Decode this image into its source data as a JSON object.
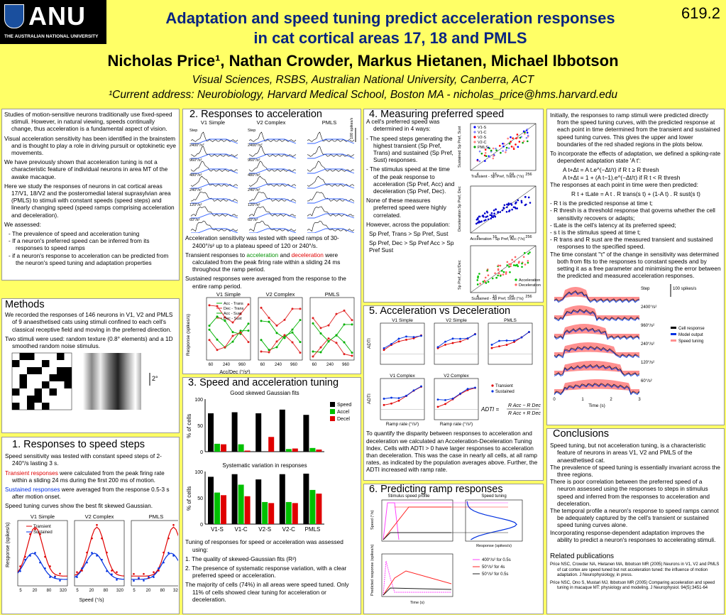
{
  "header": {
    "logo_word": "ANU",
    "logo_sub": "THE AUSTRALIAN NATIONAL UNIVERSITY",
    "title_line1": "Adaptation and speed tuning predict acceleration responses",
    "title_line2": "in cat cortical areas 17, 18 and PMLS",
    "poster_number": "619.2",
    "authors": "Nicholas Price¹, Nathan Crowder, Markus Hietanen, Michael Ibbotson",
    "affiliation": "Visual Sciences, RSBS, Australian National University, Canberra, ACT",
    "current_address": "¹Current address: Neurobiology, Harvard Medical School, Boston MA    -     nicholas_price@hms.harvard.edu"
  },
  "intro": {
    "p1": "Studies of motion-sensitive neurons traditionally use fixed-speed stimuli. However, in natural viewing, speeds continually change, thus acceleration is a fundamental aspect of vision.",
    "p2": "Visual acceleration sensitivity has been identified in the brainstem and is thought to play a role in driving pursuit or optokinetic eye movements.",
    "p3": "We have previously shown that acceleration tuning is not a characteristic feature of individual neurons in area MT of the awake macaque.",
    "p4": "Here we study the responses of neurons in cat cortical areas 17/V1, 18/V2 and the posteromedial lateral suprasylvian area (PMLS) to stimuli with constant speeds (speed steps) and linearly changing speed (speed ramps comprising acceleration and deceleration).",
    "p5": "We assessed:",
    "b1": "- The prevalence of speed and acceleration tuning",
    "b2": "- If a neuron's preferred speed can be inferred from its responses to speed ramps",
    "b3": "- if a neuron's response to acceleration can be predicted from the neuron's speed tuning and adaptation properties"
  },
  "methods": {
    "heading": "Methods",
    "p1": "We recorded the responses of 146 neurons in V1, V2 and PMLS of 9 anaesthetised cats using stimuli confined to each cell's classical receptive field and moving in the preferred direction.",
    "p2": "Two stimuli were used: random texture (0.8° elements) and a 1D smoothed random noise stimulus.",
    "scale": "2°"
  },
  "s1": {
    "heading": "1. Responses to speed steps",
    "t1": "Speed sensitivity was tested with constant speed steps of 2-240°/s lasting 3 s.",
    "t2a": "Transient responses",
    "t2b": " were calculated from the peak firing rate within a sliding 24 ms during the first 200 ms of motion.",
    "t3a": "Sustained responses",
    "t3b": " were averaged from the response 0.5-3 s after motion onset.",
    "t4": "Speed tuning curves show the best fit skewed Gaussian.",
    "panels": [
      "V1 Simple",
      "V2 Complex",
      "PMLS"
    ],
    "legend": [
      "Transient",
      "Sustained"
    ],
    "xlabel": "Speed (°/s)",
    "ylabel": "Response (spikes/s)",
    "xticks": [
      "5",
      "20",
      "80",
      "320"
    ]
  },
  "s2": {
    "heading": "2. Responses to acceleration",
    "panels": [
      "V1 Simple",
      "V2 Complex",
      "PMLS"
    ],
    "step": "Step",
    "rates": [
      "2400°/s²",
      "960°/s²",
      "480°/s²",
      "240°/s²",
      "120°/s²",
      "60°/s²"
    ],
    "scale": "100 spikes/s",
    "t1": "Acceleration sensitivity was tested with speed ramps of 30-2400°/s² up to a plateau speed of 120 or 240°/s.",
    "t2a": "Transient responses to ",
    "t2b": "acceleration",
    "t2c": " and ",
    "t2d": "deceleration",
    "t2e": " were calculated from the peak firing rate within a sliding 24 ms throughout the ramp period.",
    "t3": "Sustained responses were averaged from the response to the entire ramp period.",
    "legend": [
      "Acc - Trans",
      "Dec - Trans",
      "Acc - Sust",
      "Dec - Sust"
    ],
    "xlabel": "Acc/Dec (°/s²)",
    "ylabel": "Response (spikes/s)",
    "xticks": [
      "60",
      "240",
      "960"
    ]
  },
  "s3": {
    "heading": "3. Speed and acceleration tuning",
    "chart1_title": "Good skewed Gaussian fits",
    "chart2_title": "Systematic variation in responses",
    "ylabel": "% of cells",
    "legend": [
      "Speed",
      "Accel",
      "Decel"
    ],
    "t1": "Tuning of responses for speed or acceleration was assessed using:",
    "t2": "1. The quality of skewed-Gaussian fits (R²)",
    "t3": "2. The presence of systematic response variation, with a clear preferred speed or acceleration.",
    "t4": "The majority of cells (74%) in all areas were speed tuned. Only 11% of cells showed clear tuning for acceleration or deceleration."
  },
  "chart_data": [
    {
      "type": "bar",
      "title": "Good skewed Gaussian fits",
      "categories": [
        "V1-S",
        "V1-C",
        "V2-S",
        "V2-C",
        "PMLS"
      ],
      "series": [
        {
          "name": "Speed",
          "values": [
            73,
            75,
            73,
            80,
            70
          ]
        },
        {
          "name": "Accel",
          "values": [
            15,
            14,
            0,
            5,
            7
          ]
        },
        {
          "name": "Decel",
          "values": [
            14,
            2,
            28,
            6,
            4
          ]
        }
      ],
      "ylabel": "% of cells",
      "ylim": [
        0,
        100
      ]
    },
    {
      "type": "bar",
      "title": "Systematic variation in responses",
      "categories": [
        "V1-S",
        "V1-C",
        "V2-S",
        "V2-C",
        "PMLS"
      ],
      "series": [
        {
          "name": "Speed",
          "values": [
            90,
            95,
            85,
            95,
            96
          ]
        },
        {
          "name": "Accel",
          "values": [
            60,
            75,
            42,
            42,
            65
          ]
        },
        {
          "name": "Decel",
          "values": [
            55,
            53,
            40,
            40,
            58
          ]
        }
      ],
      "ylabel": "% of cells",
      "ylim": [
        0,
        100
      ]
    }
  ],
  "s4": {
    "heading": "4. Measuring preferred speed",
    "t1": "A cell's preferred speed was determined in 4 ways:",
    "t2": "- The speed steps generating the highest transient (Sp Pref, Trans) and sustained (Sp Pref, Sust) responses.",
    "t3": "- The stimulus speed at the time of the peak response to acceleration (Sp Pref, Acc) and deceleration (Sp Pref, Dec).",
    "t4": "None of these measures preferred speed were highly correlated.",
    "t5": "However, across the population:",
    "t6": "Sp Pref, Trans > Sp Pref, Sust",
    "t7": "Sp Pref, Dec > Sp Pref Acc > Sp Pref Sust",
    "legend": [
      "V1-S",
      "V1-C",
      "V2-S",
      "V2-C",
      "PMLS"
    ],
    "x1": "Transient - Sp Pref, Trans (°/s)",
    "y1": "Sustained Sp Pref, Sust",
    "x2": "Acceleration - Sp Pref, Acc (°/s)",
    "y2": "Deceleration Sp Pref, Dec",
    "x3": "Sustained - Sp Pref, Sust (°/s)",
    "y3": "Sp Pref, Acc/Dec",
    "legend3": [
      "Acceleration",
      "Deceleration"
    ],
    "ticks": [
      "4",
      "16",
      "64",
      "256"
    ]
  },
  "s5": {
    "heading": "5. Acceleration vs Deceleration",
    "panels": [
      "V1 Simple",
      "V2 Simple",
      "PMLS",
      "V1 Complex",
      "V2 Complex"
    ],
    "legend": [
      "Transient",
      "Sustained"
    ],
    "ylabel": "ADTI",
    "xlabel": "Ramp rate (°/s²)",
    "formula_lhs": "ADTI =",
    "num": "R Acc − R Dec",
    "den": "R Acc + R Dec",
    "t1": "To quantify the disparity between responses to acceleration and deceleration we calculated an Acceleration-Deceleration Tuning Index. Cells with ADTI > 0 have larger responses to acceleration than deceleration. This was the case in nearly all cells, at all ramp rates, as indicated by the population averages above. Further, the ADTI increased with ramp rate."
  },
  "s6": {
    "heading": "6. Predicting ramp responses",
    "c1": "Stimulus speed profile",
    "c2": "Speed tuning",
    "y1": "Speed (°/s)",
    "x2": "Response (spikes/s)",
    "y3": "Predicted response (spikes/s)",
    "x3": "Time (s)",
    "legend": [
      "400°/s² for 0.5s",
      "50°/s² for 4s",
      "50°/s² for 0.5s"
    ]
  },
  "model": {
    "t1": "Initially, the responses to ramp stimuli were predicted directly from the speed tuning curves, with the predicted response at each point in time determined from the transient and sustained speed tuning curves. This gives the upper and lower boundaries of the red shaded regions in the plots below.",
    "t2": "To incorporate the effects of adaptation, we defined a spiking-rate dependent adaptation state 'A t':",
    "eq1": "A t+Δt = A t.e^(−Δt/τ)          if R t ≥ R thresh",
    "eq2": "A t+Δt = 1 + (A t−1).e^(−Δt/τ)    if R t < R thresh",
    "t3": "The responses at each point in time were then predicted:",
    "eq3": "R t + tLate = A t . R trans(s t) + (1-A t) . R sust(s t)",
    "b1": "- R t is the predicted response at time t;",
    "b2": "- R thresh is a threshold response that governs whether the cell sensitivity recovers or adapts;",
    "b3": "- tLate is the cell's latency at its preferred speed;",
    "b4": "- s t is the stimulus speed at time t;",
    "b5": "- R trans and R sust are the measured transient and sustained responses to the specified speed.",
    "t4": "The time constant \"τ\" of the change in sensitivity was determined both from fits to the responses to constant speeds and by setting it as a free parameter and minimising the error between the predicted and measured acceleration responses.",
    "step": "Step",
    "rates": [
      "2400°/s²",
      "960°/s²",
      "240°/s²",
      "120°/s²",
      "60°/s²"
    ],
    "scale": "100 spikes/s",
    "legend": [
      "Cell response",
      "Model output",
      "Speed tuning"
    ],
    "xlabel": "Time (s)",
    "xticks": [
      "0",
      "1",
      "2",
      "3"
    ]
  },
  "conclusions": {
    "heading": "Conclusions",
    "p1": "Speed tuning, but not acceleration tuning, is a characteristic feature of neurons in areas V1, V2 and PMLS of the anaesthetised cat.",
    "p2": "The prevalence of speed tuning is essentially invariant across the three regions.",
    "p3": "There is poor correlation between the preferred speed of a neuron assessed using the responses to steps in stimulus speed and inferred from the responses to acceleration and deceleration.",
    "p4": "The temporal profile a neuron's response to speed ramps cannot be adequately captured by the cell's transient or sustained speed tuning curves alone.",
    "p5": "Incorporating response-dependent adaptation improves the ability to predict a neuron's responses to accelerating stimuli."
  },
  "publications": {
    "heading": "Related publications",
    "r1": "Price NSC, Crowder NA, Hietanen MA, Ibbotson MR (2005) Neurons in V1, V2 and PMLS of cat cortex are speed tuned but not acceleration tuned: the influence of motion adaptation. J Neurophysiology, in press.",
    "r2": "Price NSC, Ono S, Mustari MJ, Ibbotson MR (2005) Comparing acceleration and speed tuning in macaque MT: physiology and modeling. J Neurophysiol. 94(5):3451-64"
  }
}
